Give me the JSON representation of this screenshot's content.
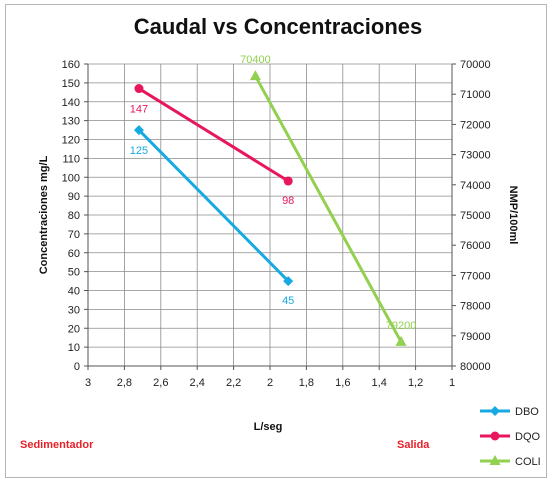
{
  "chart_data": {
    "type": "line",
    "title": "Caudal vs Concentraciones",
    "xlabel": "L/seg",
    "ylabel": "Concentraciones mg/L",
    "y2label": "NMP/100ml",
    "x_axis": {
      "min": 1,
      "max": 3,
      "step": 0.2,
      "reversed": true,
      "ticks": [
        "3",
        "2,8",
        "2,6",
        "2,4",
        "2,2",
        "2",
        "1,8",
        "1,6",
        "1,4",
        "1,2",
        "1"
      ]
    },
    "y_axis": {
      "min": 0,
      "max": 160,
      "step": 10
    },
    "y2_axis": {
      "min": 70000,
      "max": 80000,
      "step": 1000,
      "reversed": true
    },
    "grid": true,
    "legend": "bottom-right",
    "series": [
      {
        "name": "DBO",
        "color": "#17a9e1",
        "marker": "diamond",
        "axis": "left",
        "points": [
          {
            "x": 2.72,
            "y": 125,
            "label": "125"
          },
          {
            "x": 1.9,
            "y": 45,
            "label": "45"
          }
        ]
      },
      {
        "name": "DQO",
        "color": "#e8175d",
        "marker": "circle",
        "axis": "left",
        "points": [
          {
            "x": 2.72,
            "y": 147,
            "label": "147"
          },
          {
            "x": 1.9,
            "y": 98,
            "label": "98"
          }
        ]
      },
      {
        "name": "COLI",
        "color": "#92d050",
        "marker": "triangle",
        "axis": "right",
        "points": [
          {
            "x": 2.08,
            "y": 70400,
            "label": "70400"
          },
          {
            "x": 1.28,
            "y": 79200,
            "label": "79200"
          }
        ]
      }
    ]
  },
  "annotations": {
    "left": "Sedimentador",
    "right": "Salida"
  }
}
